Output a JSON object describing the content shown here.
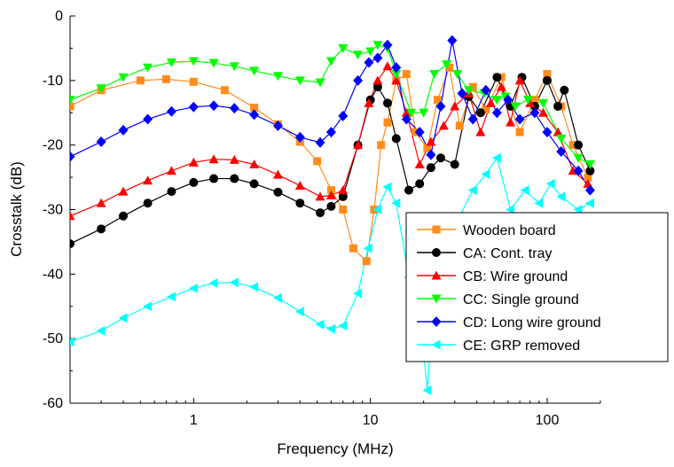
{
  "chart_data": {
    "type": "line",
    "xlabel": "Frequency (MHz)",
    "ylabel": "Crosstalk (dB)",
    "xscale": "log",
    "xlim": [
      0.2,
      200
    ],
    "ylim": [
      -60,
      0
    ],
    "x_ticks": [
      1,
      10,
      100
    ],
    "x_tick_labels": [
      "1",
      "10",
      "100"
    ],
    "y_ticks": [
      0,
      -10,
      -20,
      -30,
      -40,
      -50,
      -60
    ],
    "y_tick_labels": [
      "0",
      "-10",
      "-20",
      "-30",
      "-40",
      "-50",
      "-60"
    ],
    "grid": false,
    "legend_position": "lower-right",
    "series": [
      {
        "name": "Wooden board",
        "color": "#FF8C1A",
        "marker": "square",
        "points": [
          [
            0.2,
            -14
          ],
          [
            0.3,
            -11.5
          ],
          [
            0.5,
            -10
          ],
          [
            0.7,
            -9.8
          ],
          [
            1,
            -10.2
          ],
          [
            1.5,
            -11.5
          ],
          [
            2.2,
            -14.2
          ],
          [
            3,
            -16.8
          ],
          [
            4,
            -19.5
          ],
          [
            5,
            -22.5
          ],
          [
            6,
            -27
          ],
          [
            7,
            -30
          ],
          [
            8,
            -36
          ],
          [
            9.5,
            -38
          ],
          [
            10.5,
            -30
          ],
          [
            11.5,
            -20
          ],
          [
            12.5,
            -16.5
          ],
          [
            14,
            -10
          ],
          [
            16,
            -9
          ],
          [
            18,
            -18
          ],
          [
            21,
            -20.5
          ],
          [
            24,
            -13
          ],
          [
            28,
            -8
          ],
          [
            32,
            -17
          ],
          [
            38,
            -11
          ],
          [
            45,
            -14.5
          ],
          [
            55,
            -9.5
          ],
          [
            62,
            -14
          ],
          [
            70,
            -18
          ],
          [
            85,
            -13
          ],
          [
            100,
            -9
          ],
          [
            120,
            -14
          ],
          [
            140,
            -20
          ],
          [
            170,
            -25
          ]
        ]
      },
      {
        "name": "CA: Cont. tray",
        "color": "#000000",
        "marker": "circle",
        "points": [
          [
            0.2,
            -35.3
          ],
          [
            0.3,
            -33
          ],
          [
            0.4,
            -31
          ],
          [
            0.55,
            -29
          ],
          [
            0.75,
            -27.2
          ],
          [
            1,
            -25.8
          ],
          [
            1.3,
            -25.2
          ],
          [
            1.7,
            -25.2
          ],
          [
            2.2,
            -26
          ],
          [
            3,
            -27.3
          ],
          [
            4,
            -29
          ],
          [
            5.2,
            -30.5
          ],
          [
            6,
            -29.5
          ],
          [
            7,
            -28
          ],
          [
            8.5,
            -20
          ],
          [
            10,
            -13
          ],
          [
            11,
            -11
          ],
          [
            12.5,
            -13.5
          ],
          [
            14,
            -19
          ],
          [
            16.5,
            -27
          ],
          [
            19,
            -26
          ],
          [
            22,
            -23.5
          ],
          [
            25,
            -22
          ],
          [
            30,
            -23
          ],
          [
            36,
            -12.5
          ],
          [
            42,
            -15
          ],
          [
            52,
            -9.5
          ],
          [
            62,
            -14
          ],
          [
            72,
            -9.5
          ],
          [
            85,
            -14
          ],
          [
            100,
            -10
          ],
          [
            115,
            -14
          ],
          [
            125,
            -11.5
          ],
          [
            150,
            -20
          ],
          [
            175,
            -24
          ]
        ]
      },
      {
        "name": "CB: Wire ground",
        "color": "#FF0000",
        "marker": "triangle-up",
        "points": [
          [
            0.2,
            -31
          ],
          [
            0.3,
            -29
          ],
          [
            0.4,
            -27.2
          ],
          [
            0.55,
            -25.5
          ],
          [
            0.75,
            -24
          ],
          [
            1,
            -22.7
          ],
          [
            1.3,
            -22.2
          ],
          [
            1.7,
            -22.3
          ],
          [
            2.2,
            -23
          ],
          [
            3,
            -24.6
          ],
          [
            4,
            -26.3
          ],
          [
            5.2,
            -28
          ],
          [
            6,
            -27.8
          ],
          [
            7,
            -27
          ],
          [
            8.5,
            -20
          ],
          [
            9.8,
            -13.5
          ],
          [
            11,
            -10
          ],
          [
            12.5,
            -7.8
          ],
          [
            14,
            -10
          ],
          [
            16,
            -15
          ],
          [
            19,
            -23
          ],
          [
            22,
            -19.5
          ],
          [
            26,
            -17
          ],
          [
            30,
            -14
          ],
          [
            36,
            -12
          ],
          [
            42,
            -18
          ],
          [
            48,
            -13.5
          ],
          [
            55,
            -11
          ],
          [
            62,
            -16.5
          ],
          [
            70,
            -10
          ],
          [
            80,
            -13.5
          ],
          [
            95,
            -15
          ],
          [
            115,
            -18
          ],
          [
            140,
            -24
          ],
          [
            170,
            -26
          ]
        ]
      },
      {
        "name": "CC: Single ground",
        "color": "#00FF00",
        "marker": "triangle-down",
        "points": [
          [
            0.2,
            -13
          ],
          [
            0.3,
            -11.2
          ],
          [
            0.4,
            -9.5
          ],
          [
            0.55,
            -8
          ],
          [
            0.75,
            -7.2
          ],
          [
            1,
            -7
          ],
          [
            1.3,
            -7.3
          ],
          [
            1.7,
            -7.8
          ],
          [
            2.2,
            -8.5
          ],
          [
            3,
            -9.3
          ],
          [
            4,
            -10
          ],
          [
            5.2,
            -10.3
          ],
          [
            6,
            -7
          ],
          [
            7,
            -5
          ],
          [
            8.5,
            -6
          ],
          [
            10,
            -5.5
          ],
          [
            11,
            -4.5
          ],
          [
            12.5,
            -5
          ],
          [
            14,
            -9
          ],
          [
            17,
            -15
          ],
          [
            20,
            -15
          ],
          [
            23,
            -9
          ],
          [
            27,
            -7.5
          ],
          [
            31,
            -9
          ],
          [
            36,
            -11.5
          ],
          [
            44,
            -12
          ],
          [
            52,
            -13
          ],
          [
            58,
            -12.5
          ],
          [
            66,
            -14
          ],
          [
            78,
            -13
          ],
          [
            95,
            -13.5
          ],
          [
            120,
            -19
          ],
          [
            150,
            -22
          ],
          [
            175,
            -23
          ]
        ]
      },
      {
        "name": "CD: Long wire ground",
        "color": "#0000FF",
        "marker": "diamond",
        "points": [
          [
            0.2,
            -21.8
          ],
          [
            0.3,
            -19.5
          ],
          [
            0.4,
            -17.7
          ],
          [
            0.55,
            -16
          ],
          [
            0.75,
            -14.8
          ],
          [
            1,
            -14.1
          ],
          [
            1.3,
            -13.9
          ],
          [
            1.7,
            -14.3
          ],
          [
            2.2,
            -15.3
          ],
          [
            3,
            -17
          ],
          [
            4,
            -18.8
          ],
          [
            5.2,
            -19.6
          ],
          [
            6,
            -18
          ],
          [
            7,
            -15.5
          ],
          [
            8.5,
            -10
          ],
          [
            9.8,
            -7.2
          ],
          [
            11,
            -6.5
          ],
          [
            12.5,
            -4.5
          ],
          [
            14,
            -8
          ],
          [
            16,
            -16
          ],
          [
            19,
            -18
          ],
          [
            22,
            -21.5
          ],
          [
            25,
            -14
          ],
          [
            29,
            -3.8
          ],
          [
            33,
            -12
          ],
          [
            38,
            -16
          ],
          [
            45,
            -11.5
          ],
          [
            52,
            -15
          ],
          [
            60,
            -13
          ],
          [
            70,
            -16
          ],
          [
            85,
            -15
          ],
          [
            100,
            -18
          ],
          [
            120,
            -21
          ],
          [
            150,
            -24
          ],
          [
            175,
            -27
          ]
        ]
      },
      {
        "name": "CE: GRP removed",
        "color": "#00FFFF",
        "marker": "triangle-left",
        "points": [
          [
            0.2,
            -50.5
          ],
          [
            0.3,
            -48.8
          ],
          [
            0.4,
            -46.8
          ],
          [
            0.55,
            -45
          ],
          [
            0.75,
            -43.5
          ],
          [
            1,
            -42.2
          ],
          [
            1.3,
            -41.4
          ],
          [
            1.7,
            -41.3
          ],
          [
            2.2,
            -42
          ],
          [
            3,
            -43.7
          ],
          [
            4,
            -45.8
          ],
          [
            5.2,
            -47.8
          ],
          [
            6,
            -48.5
          ],
          [
            7,
            -48
          ],
          [
            8.5,
            -43
          ],
          [
            9.7,
            -36
          ],
          [
            11,
            -30
          ],
          [
            12.5,
            -26.5
          ],
          [
            14,
            -29
          ],
          [
            16.5,
            -40.5
          ],
          [
            19,
            -46
          ],
          [
            21,
            -58
          ],
          [
            23,
            -40
          ],
          [
            27,
            -35
          ],
          [
            32,
            -31
          ],
          [
            38,
            -27
          ],
          [
            45,
            -24.5
          ],
          [
            52,
            -22
          ],
          [
            62,
            -30
          ],
          [
            75,
            -27
          ],
          [
            90,
            -29
          ],
          [
            105,
            -26
          ],
          [
            120,
            -28
          ],
          [
            150,
            -30
          ],
          [
            175,
            -29
          ]
        ]
      }
    ]
  }
}
